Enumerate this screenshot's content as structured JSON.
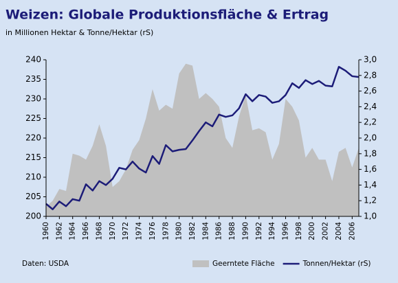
{
  "chart_data": {
    "type": "combo",
    "title": "Weizen: Globale Produktionsfläche & Ertrag",
    "subtitle": "in Millionen Hektar & Tonne/Hektar (rS)",
    "source": "Daten: USDA",
    "x": [
      1960,
      1961,
      1962,
      1963,
      1964,
      1965,
      1966,
      1967,
      1968,
      1969,
      1970,
      1971,
      1972,
      1973,
      1974,
      1975,
      1976,
      1977,
      1978,
      1979,
      1980,
      1981,
      1982,
      1983,
      1984,
      1985,
      1986,
      1987,
      1988,
      1989,
      1990,
      1991,
      1992,
      1993,
      1994,
      1995,
      1996,
      1997,
      1998,
      1999,
      2000,
      2001,
      2002,
      2003,
      2004,
      2005,
      2006,
      2007
    ],
    "xlim": [
      1960,
      2007
    ],
    "xticks": [
      1960,
      1962,
      1964,
      1966,
      1968,
      1970,
      1972,
      1974,
      1976,
      1978,
      1980,
      1982,
      1984,
      1986,
      1988,
      1990,
      1992,
      1994,
      1996,
      1998,
      2000,
      2002,
      2004,
      2006
    ],
    "ylim": [
      200,
      240
    ],
    "yticks": [
      200,
      205,
      210,
      215,
      220,
      225,
      230,
      235,
      240
    ],
    "y2lim": [
      1.0,
      3.0
    ],
    "y2ticks": [
      {
        "value": 1.0,
        "label": "1,0"
      },
      {
        "value": 1.2,
        "label": "1,2"
      },
      {
        "value": 1.4,
        "label": "1,4"
      },
      {
        "value": 1.6,
        "label": "1,6"
      },
      {
        "value": 1.8,
        "label": "1,8"
      },
      {
        "value": 2.0,
        "label": "2,0"
      },
      {
        "value": 2.2,
        "label": "2,2"
      },
      {
        "value": 2.4,
        "label": "2,4"
      },
      {
        "value": 2.6,
        "label": "2,6"
      },
      {
        "value": 2.8,
        "label": "2,8"
      },
      {
        "value": 3.0,
        "label": "3,0"
      }
    ],
    "legend": "bottom-right",
    "series": [
      {
        "name": "Geerntete Fläche",
        "type": "area",
        "color": "#c0c0c0",
        "values": [
          202.5,
          204,
          207,
          206.5,
          216,
          215.5,
          214.5,
          218,
          223.5,
          218,
          207.5,
          209,
          212,
          217,
          219.5,
          225,
          232.5,
          227,
          228.5,
          227.5,
          236.5,
          239,
          238.5,
          230,
          231.5,
          230,
          228,
          220,
          217.5,
          225.5,
          231,
          222,
          222.5,
          221.5,
          214.5,
          218.5,
          230,
          228,
          224.5,
          215,
          217.5,
          214.5,
          214.5,
          209,
          216.5,
          217.5,
          212.5,
          217.5
        ]
      },
      {
        "name": "Tonnen/Hektar (rS)",
        "type": "line",
        "axis": "y2",
        "color": "#1c1c78",
        "values": [
          1.16,
          1.09,
          1.19,
          1.13,
          1.22,
          1.2,
          1.41,
          1.33,
          1.45,
          1.4,
          1.48,
          1.62,
          1.6,
          1.7,
          1.61,
          1.56,
          1.77,
          1.67,
          1.91,
          1.83,
          1.85,
          1.86,
          1.97,
          2.09,
          2.2,
          2.15,
          2.3,
          2.27,
          2.29,
          2.38,
          2.56,
          2.47,
          2.55,
          2.53,
          2.45,
          2.47,
          2.55,
          2.7,
          2.64,
          2.74,
          2.69,
          2.73,
          2.67,
          2.66,
          2.91,
          2.86,
          2.79,
          2.78
        ]
      }
    ]
  }
}
